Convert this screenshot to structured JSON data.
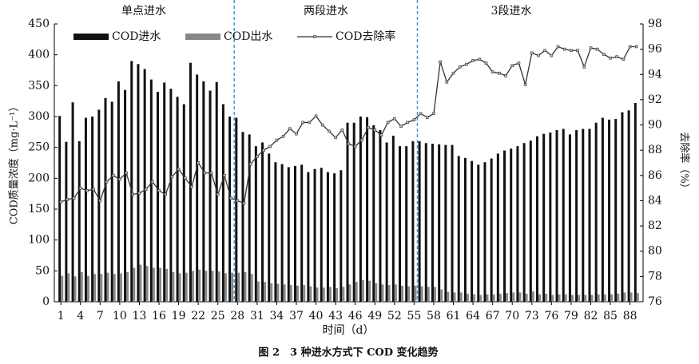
{
  "chart_data": {
    "type": "bar-line",
    "caption": "图 2　3 种进水方式下 COD 变化趋势",
    "x_label": "时间（d）",
    "y_label": "COD质量浓度（mg·L⁻¹）",
    "y2_label": "去除率（%）",
    "sections": [
      "单点进水",
      "两段进水",
      "3段进水"
    ],
    "dividers": [
      27.5,
      55.5
    ],
    "divider_color": "#3c9ad6",
    "legend": "top-left",
    "x": [
      1,
      2,
      3,
      4,
      5,
      6,
      7,
      8,
      9,
      10,
      11,
      12,
      13,
      14,
      15,
      16,
      17,
      18,
      19,
      20,
      21,
      22,
      23,
      24,
      25,
      26,
      27,
      28,
      29,
      30,
      31,
      32,
      33,
      34,
      35,
      36,
      37,
      38,
      39,
      40,
      41,
      42,
      43,
      44,
      45,
      46,
      47,
      48,
      49,
      50,
      51,
      52,
      53,
      54,
      55,
      56,
      57,
      58,
      59,
      60,
      61,
      62,
      63,
      64,
      65,
      66,
      67,
      68,
      69,
      70,
      71,
      72,
      73,
      74,
      75,
      76,
      77,
      78,
      79,
      80,
      81,
      82,
      83,
      84,
      85,
      86,
      87,
      88,
      89
    ],
    "xlim": [
      0,
      90
    ],
    "xticks": [
      1,
      4,
      7,
      10,
      13,
      16,
      19,
      22,
      25,
      28,
      31,
      34,
      37,
      40,
      43,
      46,
      49,
      52,
      55,
      58,
      61,
      64,
      67,
      70,
      73,
      76,
      79,
      82,
      85,
      88
    ],
    "ylim": [
      0,
      450
    ],
    "yticks": [
      0,
      50,
      100,
      150,
      200,
      250,
      300,
      350,
      400,
      450
    ],
    "y2lim": [
      76,
      98
    ],
    "y2ticks": [
      76,
      78,
      80,
      82,
      84,
      86,
      88,
      90,
      92,
      94,
      96,
      98
    ],
    "series": [
      {
        "name": "COD进水",
        "color": "#111111",
        "kind": "bar",
        "values": [
          301,
          259,
          323,
          260,
          298,
          300,
          311,
          330,
          324,
          357,
          343,
          390,
          385,
          377,
          360,
          340,
          355,
          345,
          332,
          320,
          387,
          368,
          357,
          342,
          356,
          320,
          300,
          298,
          275,
          271,
          252,
          258,
          240,
          226,
          223,
          218,
          220,
          222,
          210,
          215,
          217,
          210,
          208,
          213,
          290,
          290,
          300,
          299,
          286,
          278,
          258,
          269,
          252,
          252,
          260,
          260,
          257,
          256,
          255,
          254,
          254,
          236,
          233,
          228,
          222,
          226,
          232,
          240,
          245,
          248,
          252,
          257,
          261,
          268,
          272,
          274,
          278,
          280,
          271,
          278,
          280,
          280,
          290,
          298,
          295,
          296,
          307,
          310,
          322
        ]
      },
      {
        "name": "COD出水",
        "color": "#888888",
        "kind": "bar",
        "values": [
          42,
          46,
          41,
          48,
          42,
          45,
          45,
          47,
          45,
          46,
          48,
          55,
          60,
          58,
          55,
          55,
          53,
          48,
          46,
          47,
          50,
          52,
          50,
          50,
          49,
          46,
          47,
          47,
          48,
          45,
          33,
          32,
          30,
          29,
          28,
          27,
          26,
          27,
          25,
          23,
          23,
          24,
          22,
          24,
          28,
          32,
          35,
          34,
          30,
          28,
          27,
          28,
          26,
          25,
          26,
          25,
          24,
          24,
          20,
          16,
          15,
          15,
          13,
          12,
          11,
          12,
          12,
          13,
          14,
          15,
          15,
          13,
          17,
          12,
          13,
          11,
          12,
          12,
          11,
          11,
          11,
          11,
          12,
          12,
          12,
          13,
          15,
          15,
          14
        ]
      },
      {
        "name": "COD去除率",
        "color": "#333333",
        "kind": "line",
        "axis": "y2",
        "values": [
          83.9,
          84.1,
          84.2,
          85.0,
          84.8,
          84.9,
          84.0,
          85.5,
          86.0,
          85.7,
          86.2,
          84.5,
          84.6,
          84.9,
          85.5,
          84.8,
          84.5,
          85.9,
          86.5,
          85.8,
          85.1,
          87.0,
          86.2,
          86.2,
          84.5,
          86.0,
          84.2,
          84.0,
          83.8,
          86.9,
          87.5,
          88.0,
          88.3,
          88.8,
          89.1,
          89.7,
          89.3,
          90.2,
          90.2,
          90.7,
          90.0,
          89.5,
          89.0,
          89.6,
          88.5,
          88.3,
          88.8,
          89.8,
          89.6,
          89.2,
          90.2,
          90.5,
          89.9,
          90.2,
          90.4,
          90.9,
          90.6,
          90.9,
          95.0,
          93.4,
          94.1,
          94.6,
          94.8,
          95.1,
          95.2,
          94.9,
          94.2,
          94.1,
          93.9,
          94.7,
          94.9,
          93.2,
          95.7,
          95.5,
          95.9,
          95.5,
          96.2,
          96.0,
          95.9,
          95.9,
          94.6,
          96.1,
          96.0,
          95.6,
          95.3,
          95.4,
          95.2,
          96.2,
          96.2
        ]
      }
    ]
  }
}
